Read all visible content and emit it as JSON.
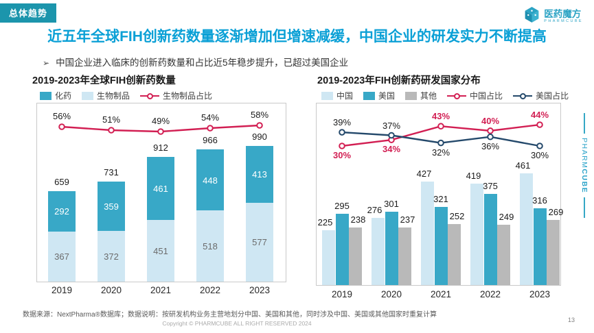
{
  "badge": "总体趋势",
  "logo": {
    "name": "医药魔方",
    "sub": "PHARMCUBE"
  },
  "title": "近五年全球FIH创新药数量逐渐增加但增速减缓，中国企业的研发实力不断提高",
  "bullet": {
    "marker": "➢",
    "text": "中国企业进入临床的创新药数量和占比近5年稳步提升，已超过美国企业"
  },
  "side": {
    "pharm": "PHARM",
    "cube": "CUBE"
  },
  "colors": {
    "accent_teal": "#38a8c7",
    "light_blue": "#cfe7f3",
    "gray": "#b9b9b9",
    "crimson": "#d21f53",
    "navy": "#24496b",
    "title_blue": "#0aa0d6",
    "badge_bg": "#1c95ac",
    "logo_teal": "#2ba3c4"
  },
  "chart_data": [
    {
      "type": "bar",
      "subtype": "stacked-with-line",
      "title": "2019-2023年全球FIH创新药数量",
      "categories": [
        "2019",
        "2020",
        "2021",
        "2022",
        "2023"
      ],
      "totals": [
        659,
        731,
        912,
        966,
        990
      ],
      "series": [
        {
          "name": "化药",
          "type": "bar",
          "color": "#38a8c7",
          "values": [
            292,
            359,
            461,
            448,
            413
          ]
        },
        {
          "name": "生物制品",
          "type": "bar",
          "color": "#cfe7f3",
          "values": [
            367,
            372,
            451,
            518,
            577
          ]
        },
        {
          "name": "生物制品占比",
          "type": "line",
          "color": "#d21f53",
          "unit": "%",
          "values": [
            56,
            51,
            49,
            54,
            58
          ],
          "label_side": [
            "above",
            "above",
            "above",
            "above",
            "above"
          ],
          "label_color": "#1a1a1a"
        }
      ],
      "legend_position": "top",
      "grid": false
    },
    {
      "type": "bar",
      "subtype": "grouped-with-lines",
      "title": "2019-2023年FIH创新药研发国家分布",
      "categories": [
        "2019",
        "2020",
        "2021",
        "2022",
        "2023"
      ],
      "series": [
        {
          "name": "中国",
          "type": "bar",
          "color": "#cfe7f3",
          "values": [
            225,
            276,
            427,
            419,
            461
          ]
        },
        {
          "name": "美国",
          "type": "bar",
          "color": "#38a8c7",
          "values": [
            295,
            301,
            321,
            375,
            316
          ]
        },
        {
          "name": "其他",
          "type": "bar",
          "color": "#b9b9b9",
          "values": [
            238,
            237,
            252,
            249,
            269
          ]
        },
        {
          "name": "中国占比",
          "type": "line",
          "color": "#d21f53",
          "unit": "%",
          "values": [
            30,
            34,
            43,
            40,
            44
          ],
          "label_side": [
            "below",
            "below",
            "above",
            "above",
            "above"
          ],
          "label_color": "#d21f53"
        },
        {
          "name": "美国占比",
          "type": "line",
          "color": "#24496b",
          "unit": "%",
          "values": [
            39,
            37,
            32,
            36,
            30
          ],
          "label_side": [
            "above",
            "above",
            "below",
            "below",
            "below"
          ],
          "label_color": "#1a1a1a"
        }
      ],
      "legend_position": "top",
      "grid": false
    }
  ],
  "footer": {
    "source": "数据来源：NextPharma®数据库；数据说明：按研发机构业务主营地划分中国、美国和其他，同时涉及中国、美国或其他国家时重复计算",
    "copyright": "Copyright © PHARMCUBE ALL RIGHT RESERVED 2024",
    "page": "13"
  }
}
